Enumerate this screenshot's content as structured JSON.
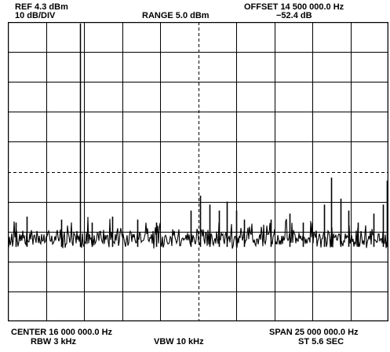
{
  "header": {
    "ref_level": "REF 4.3 dBm",
    "scale": "10 dB/DIV",
    "range": "RANGE 5.0 dBm",
    "offset": "OFFSET 14 500 000.0  Hz",
    "marker_level": "−52.4 dB"
  },
  "footer": {
    "center": "CENTER 16 000 000.0  Hz",
    "rbw": "RBW 3 kHz",
    "vbw": "VBW 10 kHz",
    "span": "SPAN 25 000 000.0  Hz",
    "sweep_time": "ST 5.6 SEC"
  },
  "display": {
    "h_divisions": 10,
    "v_divisions": 10,
    "trace_color": "#000000",
    "grid_color": "#000000",
    "background": "#ffffff",
    "dashed_center_lines": true
  },
  "trace": {
    "noise_floor_div": 7.25,
    "spurs": [
      {
        "x_div": 1.9,
        "level_div": 0.05
      },
      {
        "x_div": 0.2,
        "level_div": 6.7
      },
      {
        "x_div": 0.5,
        "level_div": 6.5
      },
      {
        "x_div": 1.4,
        "level_div": 6.6
      },
      {
        "x_div": 2.2,
        "level_div": 6.7
      },
      {
        "x_div": 2.75,
        "level_div": 6.5
      },
      {
        "x_div": 3.4,
        "level_div": 6.6
      },
      {
        "x_div": 3.9,
        "level_div": 6.7
      },
      {
        "x_div": 4.8,
        "level_div": 6.3
      },
      {
        "x_div": 5.05,
        "level_div": 5.8
      },
      {
        "x_div": 5.3,
        "level_div": 6.1
      },
      {
        "x_div": 5.55,
        "level_div": 6.3
      },
      {
        "x_div": 5.75,
        "level_div": 6.0
      },
      {
        "x_div": 6.0,
        "level_div": 6.3
      },
      {
        "x_div": 6.2,
        "level_div": 6.6
      },
      {
        "x_div": 6.9,
        "level_div": 6.6
      },
      {
        "x_div": 7.4,
        "level_div": 6.4
      },
      {
        "x_div": 7.75,
        "level_div": 6.7
      },
      {
        "x_div": 8.3,
        "level_div": 6.1
      },
      {
        "x_div": 8.5,
        "level_div": 5.2
      },
      {
        "x_div": 8.75,
        "level_div": 5.9
      },
      {
        "x_div": 8.95,
        "level_div": 6.3
      },
      {
        "x_div": 9.2,
        "level_div": 6.7
      },
      {
        "x_div": 9.6,
        "level_div": 6.4
      },
      {
        "x_div": 9.85,
        "level_div": 6.1
      },
      {
        "x_div": 9.95,
        "level_div": 5.3
      }
    ]
  }
}
